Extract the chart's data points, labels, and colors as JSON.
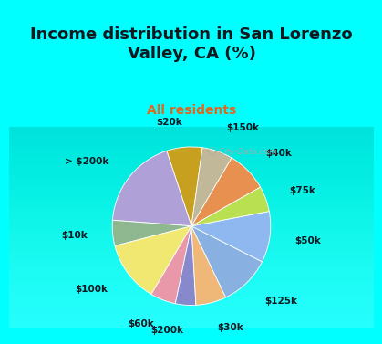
{
  "title": "Income distribution in San Lorenzo\nValley, CA (%)",
  "subtitle": "All residents",
  "labels": [
    "$20k",
    "> $200k",
    "$10k",
    "$100k",
    "$60k",
    "$200k",
    "$30k",
    "$125k",
    "$50k",
    "$75k",
    "$40k",
    "$150k"
  ],
  "values": [
    7,
    18,
    5,
    12,
    5,
    4,
    6,
    10,
    10,
    5,
    8,
    6
  ],
  "colors": [
    "#c8a020",
    "#b0a0d8",
    "#90b890",
    "#f0e870",
    "#e898a8",
    "#8888cc",
    "#f0b878",
    "#88b0e0",
    "#90b8f0",
    "#b8e050",
    "#e89050",
    "#c0b898"
  ],
  "title_color": "#101820",
  "subtitle_color": "#e06820",
  "bg_color_outer": "#00ffff",
  "bg_color_inner": "#d0ede0",
  "startangle": 82,
  "label_fontsize": 7.5,
  "title_fontsize": 13,
  "subtitle_fontsize": 10
}
